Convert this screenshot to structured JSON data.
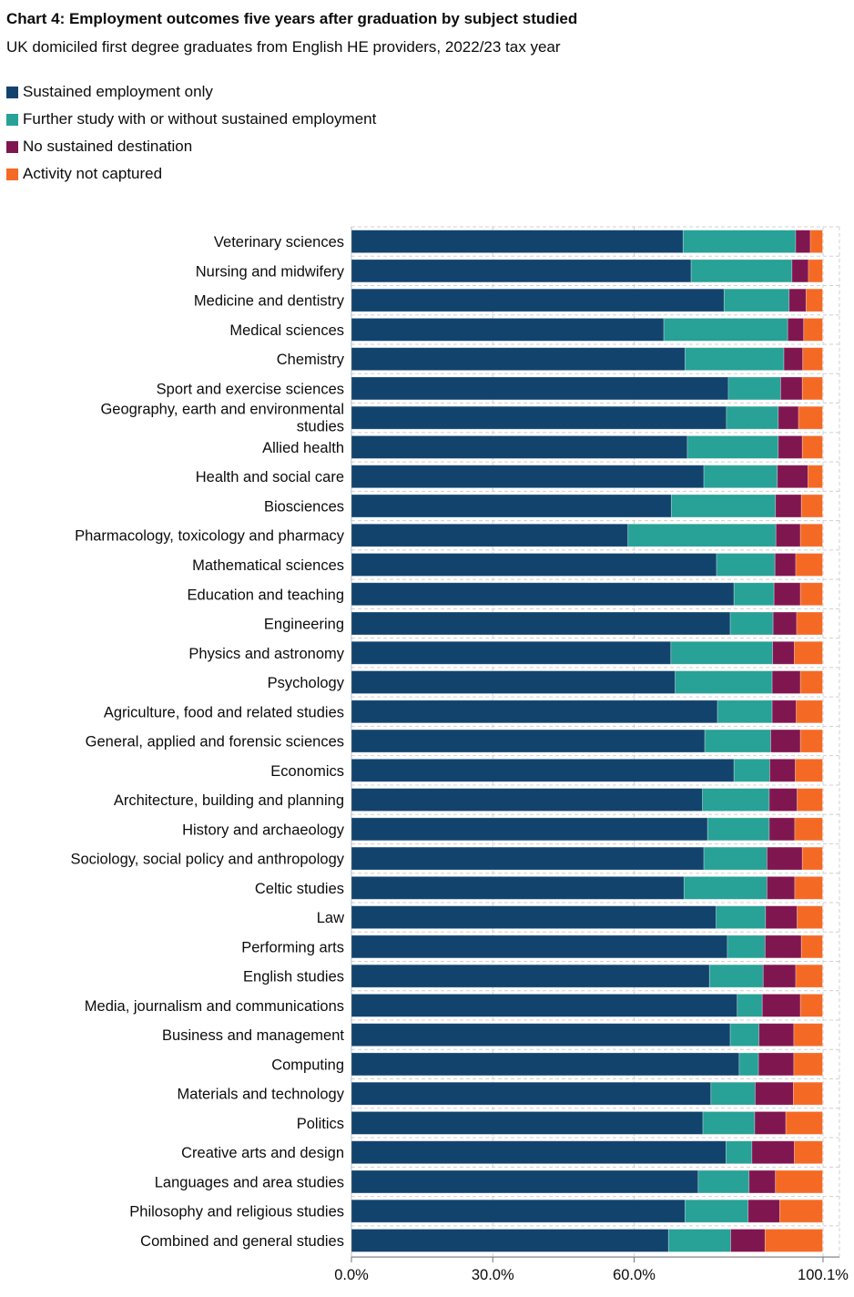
{
  "chart_data": {
    "type": "bar",
    "orientation": "horizontal",
    "stacked": true,
    "title": "Chart 4: Employment outcomes five years after graduation by subject studied",
    "subtitle": "UK domiciled first degree graduates from English HE providers, 2022/23 tax year",
    "xlim": [
      0,
      100.1
    ],
    "x_ticks": [
      "0.0%",
      "30.0%",
      "60.0%",
      "100.1%"
    ],
    "x_tick_values": [
      0,
      30,
      60,
      100.1
    ],
    "grid": true,
    "legend_position": "top-left",
    "categories": [
      "Veterinary sciences",
      "Nursing and midwifery",
      "Medicine and dentistry",
      "Medical sciences",
      "Chemistry",
      "Sport and exercise sciences",
      "Geography, earth and environmental studies",
      "Allied health",
      "Health and social care",
      "Biosciences",
      "Pharmacology, toxicology and pharmacy",
      "Mathematical sciences",
      "Education and teaching",
      "Engineering",
      "Physics and astronomy",
      "Psychology",
      "Agriculture, food and related studies",
      "General, applied and forensic sciences",
      "Economics",
      "Architecture, building and planning",
      "History and archaeology",
      "Sociology, social policy and anthropology",
      "Celtic studies",
      "Law",
      "Performing arts",
      "English studies",
      "Media, journalism and communications",
      "Business and management",
      "Computing",
      "Materials and technology",
      "Politics",
      "Creative arts and design",
      "Languages and area studies",
      "Philosophy and religious studies",
      "Combined and general studies"
    ],
    "series": [
      {
        "name": "Sustained employment only",
        "color": "#12436D",
        "values": [
          70.4,
          72.1,
          79.1,
          66.3,
          70.8,
          80.0,
          79.6,
          71.3,
          74.8,
          67.9,
          58.7,
          77.5,
          81.2,
          80.4,
          67.8,
          68.7,
          77.7,
          75.0,
          81.2,
          74.5,
          75.6,
          74.8,
          70.6,
          77.4,
          79.8,
          76.0,
          81.9,
          80.4,
          82.3,
          76.3,
          74.6,
          79.5,
          73.6,
          70.8,
          67.3
        ]
      },
      {
        "name": "Further study with or without sustained employment",
        "color": "#28A197",
        "values": [
          23.9,
          21.4,
          13.8,
          26.3,
          21.0,
          11.1,
          11.0,
          19.3,
          15.6,
          22.1,
          31.4,
          12.4,
          8.5,
          9.1,
          21.6,
          20.6,
          11.6,
          14.0,
          7.6,
          14.2,
          13.1,
          13.4,
          17.6,
          10.5,
          8.0,
          11.4,
          5.3,
          6.1,
          4.1,
          9.4,
          11.0,
          5.5,
          10.8,
          13.4,
          13.2
        ]
      },
      {
        "name": "No sustained destination",
        "color": "#801650",
        "values": [
          3.1,
          3.5,
          3.6,
          3.4,
          4.0,
          4.6,
          4.3,
          5.1,
          6.5,
          5.5,
          5.2,
          4.4,
          5.6,
          5.0,
          4.6,
          6.0,
          5.1,
          6.3,
          5.4,
          5.9,
          5.4,
          7.5,
          5.9,
          6.7,
          7.7,
          6.9,
          8.1,
          7.4,
          7.5,
          8.1,
          6.6,
          9.0,
          5.6,
          6.7,
          7.3
        ]
      },
      {
        "name": "Activity not captured",
        "color": "#F46A25",
        "values": [
          2.6,
          3.0,
          3.5,
          4.0,
          4.2,
          4.3,
          5.1,
          4.3,
          3.1,
          4.5,
          4.7,
          5.7,
          4.7,
          5.5,
          6.0,
          4.7,
          5.6,
          4.7,
          5.8,
          5.4,
          5.9,
          4.3,
          5.9,
          5.4,
          4.5,
          5.7,
          4.7,
          6.1,
          6.1,
          6.2,
          7.8,
          6.0,
          10.0,
          9.1,
          12.2
        ]
      }
    ]
  }
}
